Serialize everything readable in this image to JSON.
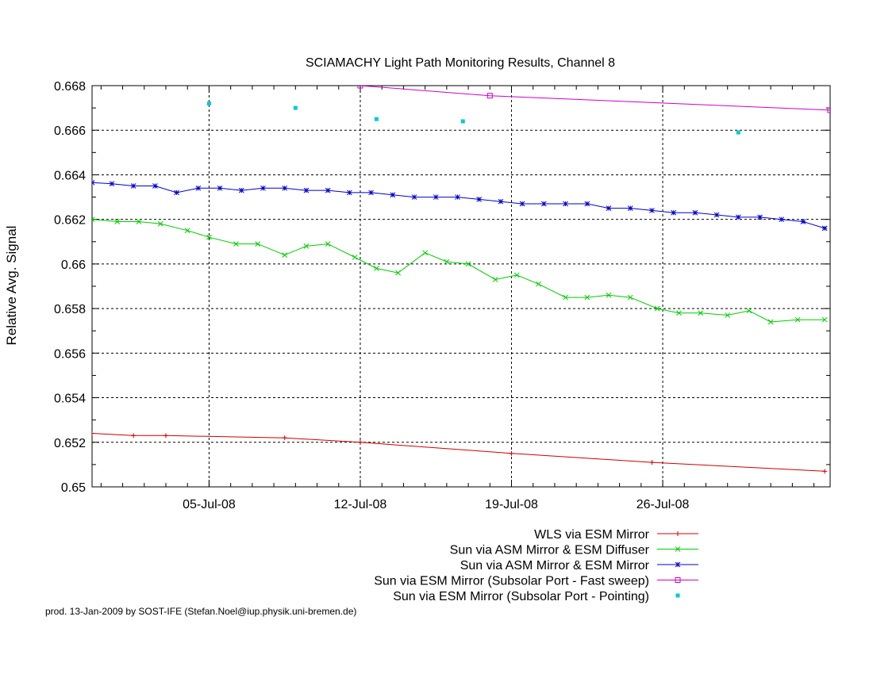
{
  "chart_data": {
    "type": "line",
    "title": "SCIAMACHY Light Path Monitoring Results, Channel 8",
    "xlabel": "",
    "ylabel": "Relative Avg. Signal",
    "x_unit": "date (July 2008)",
    "xlim": [
      "2008-06-29T14:00",
      "2008-08-02T18:00"
    ],
    "ylim": [
      0.65,
      0.668
    ],
    "grid": true,
    "legend_position": "bottom-right (below plot)",
    "x_ticks": [
      {
        "date": "2008-07-05",
        "label": "05-Jul-08"
      },
      {
        "date": "2008-07-12",
        "label": "12-Jul-08"
      },
      {
        "date": "2008-07-19",
        "label": "19-Jul-08"
      },
      {
        "date": "2008-07-26",
        "label": "26-Jul-08"
      }
    ],
    "y_ticks": [
      {
        "value": 0.65,
        "label": "0.65"
      },
      {
        "value": 0.652,
        "label": "0.652"
      },
      {
        "value": 0.654,
        "label": "0.654"
      },
      {
        "value": 0.656,
        "label": "0.656"
      },
      {
        "value": 0.658,
        "label": "0.658"
      },
      {
        "value": 0.66,
        "label": "0.66"
      },
      {
        "value": 0.662,
        "label": "0.662"
      },
      {
        "value": 0.664,
        "label": "0.664"
      },
      {
        "value": 0.666,
        "label": "0.666"
      },
      {
        "value": 0.668,
        "label": "0.668"
      }
    ],
    "series": [
      {
        "name": "WLS via ESM Mirror",
        "color": "#cc0000",
        "marker": "plus",
        "x": [
          "2008-06-29T14:00",
          "2008-07-01T12:00",
          "2008-07-03T00:00",
          "2008-07-08T12:00",
          "2008-07-12T00:00",
          "2008-07-19T00:00",
          "2008-07-25T12:00",
          "2008-08-02T12:00"
        ],
        "y": [
          0.6524,
          0.6523,
          0.6523,
          0.6522,
          0.652,
          0.6515,
          0.6511,
          0.6507
        ]
      },
      {
        "name": "Sun via ASM Mirror & ESM Diffuser",
        "color": "#00cc00",
        "marker": "x",
        "x": [
          "2008-06-29T14:00",
          "2008-06-30T18:00",
          "2008-07-01T18:00",
          "2008-07-02T18:00",
          "2008-07-04T00:00",
          "2008-07-05T00:00",
          "2008-07-06T06:00",
          "2008-07-07T06:00",
          "2008-07-08T12:00",
          "2008-07-09T12:00",
          "2008-07-10T12:00",
          "2008-07-11T18:00",
          "2008-07-12T18:00",
          "2008-07-13T18:00",
          "2008-07-15T00:00",
          "2008-07-16T00:00",
          "2008-07-17T00:00",
          "2008-07-18T06:00",
          "2008-07-19T06:00",
          "2008-07-20T06:00",
          "2008-07-21T12:00",
          "2008-07-22T12:00",
          "2008-07-23T12:00",
          "2008-07-24T12:00",
          "2008-07-25T18:00",
          "2008-07-26T18:00",
          "2008-07-27T18:00",
          "2008-07-29T00:00",
          "2008-07-30T00:00",
          "2008-07-31T00:00",
          "2008-08-01T06:00",
          "2008-08-02T12:00"
        ],
        "y": [
          0.662,
          0.6619,
          0.6619,
          0.6618,
          0.6615,
          0.6612,
          0.6609,
          0.6609,
          0.6604,
          0.6608,
          0.6609,
          0.6603,
          0.6598,
          0.6596,
          0.6605,
          0.6601,
          0.66,
          0.6593,
          0.6595,
          0.6591,
          0.6585,
          0.6585,
          0.6586,
          0.6585,
          0.658,
          0.6578,
          0.6578,
          0.6577,
          0.6579,
          0.6574,
          0.6575,
          0.6575
        ]
      },
      {
        "name": "Sun via ASM Mirror & ESM Mirror",
        "color": "#0000cc",
        "marker": "star",
        "x": [
          "2008-06-29T14:00",
          "2008-06-30T12:00",
          "2008-07-01T12:00",
          "2008-07-02T12:00",
          "2008-07-03T12:00",
          "2008-07-04T12:00",
          "2008-07-05T12:00",
          "2008-07-06T12:00",
          "2008-07-07T12:00",
          "2008-07-08T12:00",
          "2008-07-09T12:00",
          "2008-07-10T12:00",
          "2008-07-11T12:00",
          "2008-07-12T12:00",
          "2008-07-13T12:00",
          "2008-07-14T12:00",
          "2008-07-15T12:00",
          "2008-07-16T12:00",
          "2008-07-17T12:00",
          "2008-07-18T12:00",
          "2008-07-19T12:00",
          "2008-07-20T12:00",
          "2008-07-21T12:00",
          "2008-07-22T12:00",
          "2008-07-23T12:00",
          "2008-07-24T12:00",
          "2008-07-25T12:00",
          "2008-07-26T12:00",
          "2008-07-27T12:00",
          "2008-07-28T12:00",
          "2008-07-29T12:00",
          "2008-07-30T12:00",
          "2008-07-31T12:00",
          "2008-08-01T12:00",
          "2008-08-02T12:00"
        ],
        "y": [
          0.66365,
          0.6636,
          0.6635,
          0.6635,
          0.6632,
          0.6634,
          0.6634,
          0.6633,
          0.6634,
          0.6634,
          0.6633,
          0.6633,
          0.6632,
          0.6632,
          0.6631,
          0.663,
          0.663,
          0.663,
          0.6629,
          0.6628,
          0.6627,
          0.6627,
          0.6627,
          0.6627,
          0.6625,
          0.6625,
          0.6624,
          0.6623,
          0.6623,
          0.6622,
          0.6621,
          0.6621,
          0.662,
          0.6619,
          0.6616
        ]
      },
      {
        "name": "Sun via ESM Mirror (Subsolar Port - Fast sweep)",
        "color": "#cc00cc",
        "marker": "square",
        "x": [
          "2008-07-12T00:00",
          "2008-07-18T00:00",
          "2008-08-02T18:00"
        ],
        "y": [
          0.668,
          0.66755,
          0.6669
        ]
      },
      {
        "name": "Sun via ESM Mirror (Subsolar Port - Pointing)",
        "color": "#00cccc",
        "marker": "dot",
        "x": [
          "2008-07-05T00:00",
          "2008-07-09T00:00",
          "2008-07-12T18:00",
          "2008-07-16T18:00",
          "2008-07-29T12:00"
        ],
        "y": [
          0.6672,
          0.667,
          0.6665,
          0.6664,
          0.6659
        ]
      }
    ]
  },
  "footer": {
    "credit": "prod. 13-Jan-2009 by SOST-IFE (Stefan.Noel@iup.physik.uni-bremen.de)"
  }
}
